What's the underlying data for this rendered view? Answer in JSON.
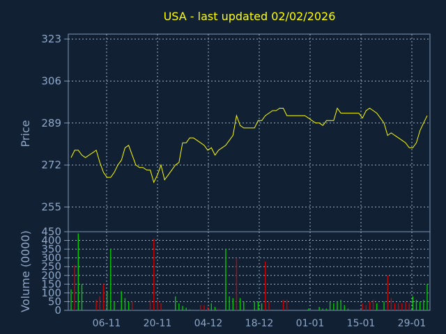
{
  "chart_data": [
    {
      "type": "line",
      "title": "USA - last updated 02/02/2026",
      "ylabel": "Price",
      "ylim": [
        245,
        325
      ],
      "yticks": [
        255,
        272,
        289,
        306,
        323
      ],
      "grid": true,
      "x_tick_labels": [
        "06-11",
        "20-11",
        "04-12",
        "18-12",
        "01-01",
        "15-01",
        "29-01"
      ],
      "series": [
        {
          "color": "#ffff00",
          "values": [
            275,
            278,
            278,
            276,
            275,
            276,
            277,
            278,
            273,
            269,
            267,
            267,
            269,
            272,
            274,
            279,
            280,
            276,
            272,
            271,
            271,
            270,
            270,
            265,
            268,
            272,
            266,
            268,
            270,
            272,
            273,
            281,
            281,
            283,
            283,
            282,
            281,
            280,
            278,
            279,
            276,
            278,
            279,
            280,
            282,
            284,
            292,
            288,
            287,
            287,
            287,
            287,
            290,
            290,
            292,
            293,
            294,
            294,
            295,
            295,
            292,
            292,
            292,
            292,
            292,
            292,
            291,
            290,
            289,
            289,
            288,
            290,
            290,
            290,
            295,
            293,
            293,
            293,
            293,
            293,
            293,
            291,
            294,
            295,
            294,
            293,
            291,
            289,
            284,
            285,
            284,
            283,
            282,
            281,
            279,
            279,
            281,
            286,
            289,
            292
          ]
        }
      ]
    },
    {
      "type": "bar",
      "ylabel": "Volume (0000)",
      "ylim": [
        0,
        450
      ],
      "yticks": [
        0,
        50,
        100,
        150,
        200,
        250,
        300,
        350,
        400,
        450
      ],
      "grid": true,
      "up_color": "#00cc00",
      "down_color": "#cc0000",
      "values": [
        120,
        260,
        440,
        150,
        0,
        0,
        0,
        60,
        80,
        150,
        110,
        350,
        50,
        0,
        110,
        70,
        50,
        50,
        0,
        0,
        0,
        0,
        60,
        410,
        60,
        40,
        0,
        0,
        0,
        80,
        40,
        25,
        15,
        5,
        0,
        0,
        30,
        30,
        20,
        40,
        20,
        10,
        0,
        350,
        80,
        70,
        300,
        70,
        50,
        0,
        0,
        50,
        50,
        40,
        280,
        50,
        0,
        0,
        0,
        60,
        60,
        0,
        0,
        0,
        0,
        0,
        10,
        0,
        0,
        20,
        10,
        10,
        50,
        40,
        50,
        60,
        30,
        10,
        0,
        0,
        0,
        40,
        30,
        50,
        60,
        40,
        0,
        50,
        200,
        70,
        40,
        40,
        40,
        50,
        40,
        80,
        60,
        50,
        60,
        150
      ],
      "up": [
        true,
        false,
        true,
        true,
        true,
        true,
        true,
        false,
        false,
        false,
        true,
        true,
        true,
        true,
        true,
        true,
        true,
        false,
        false,
        false,
        false,
        false,
        false,
        false,
        false,
        false,
        true,
        true,
        true,
        true,
        true,
        true,
        true,
        true,
        true,
        false,
        false,
        false,
        false,
        true,
        true,
        false,
        true,
        true,
        true,
        true,
        false,
        true,
        true,
        true,
        true,
        true,
        true,
        true,
        false,
        false,
        true,
        true,
        true,
        false,
        false,
        true,
        true,
        true,
        true,
        true,
        true,
        true,
        true,
        true,
        true,
        true,
        true,
        true,
        true,
        true,
        true,
        true,
        true,
        true,
        true,
        false,
        false,
        false,
        false,
        true,
        true,
        true,
        false,
        false,
        false,
        false,
        false,
        false,
        false,
        true,
        true,
        true,
        true,
        true
      ]
    }
  ]
}
